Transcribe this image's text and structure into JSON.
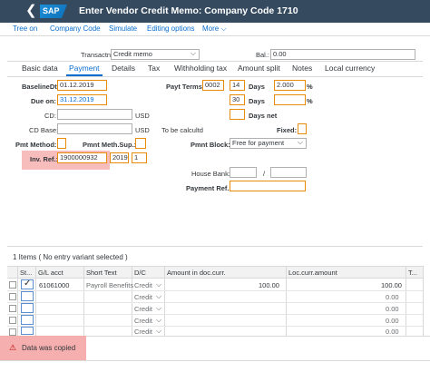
{
  "shell": {
    "back": "❮",
    "logo": "SAP",
    "title": "Enter Vendor Credit Memo: Company Code 1710"
  },
  "toolbar": {
    "tree_on": "Tree on",
    "company_code": "Company Code",
    "simulate": "Simulate",
    "editing_options": "Editing options",
    "more": "More"
  },
  "header": {
    "transaction_label": "Transactn:",
    "transaction_value": "Credit memo",
    "balance_label": "Bal.:",
    "balance_value": "0.00"
  },
  "tabs": [
    "Basic data",
    "Payment",
    "Details",
    "Tax",
    "Withholding tax",
    "Amount split",
    "Notes",
    "Local currency"
  ],
  "payment": {
    "baseline_label": "BaselineDt:",
    "baseline_value": "01.12.2019",
    "due_label": "Due on:",
    "due_value": "31.12.2019",
    "cd_label": "CD:",
    "cd_currency": "USD",
    "cd_base_label": "CD Base:",
    "cd_base_currency": "USD",
    "pmt_method_label": "Pmt Method:",
    "pmt_meth_sup_label": "Pmnt Meth.Sup.:",
    "inv_ref_label": "Inv. Ref.:",
    "inv_ref_value": "1900000932",
    "inv_ref_year": "2019",
    "inv_ref_item": "1",
    "payt_terms_label": "Payt Terms:",
    "payt_terms_value": "0002",
    "days1": "14",
    "days_label1": "Days",
    "pct1": "2.000",
    "pct_sign1": "%",
    "days2": "30",
    "days_label2": "Days",
    "pct_sign2": "%",
    "days_net_label": "Days net",
    "to_be_calc_label": "To be calcultd",
    "fixed_label": "Fixed:",
    "pmnt_block_label": "Pmnt Block:",
    "pmnt_block_value": "Free for payment",
    "house_bank_label": "House Bank:",
    "slash": "/",
    "payment_ref_label": "Payment Ref.:"
  },
  "items": {
    "title": "1 Items ( No entry variant selected )",
    "columns": [
      "St...",
      "G/L acct",
      "Short Text",
      "D/C",
      "Amount in doc.curr.",
      "Loc.curr.amount",
      "T..."
    ],
    "rows": [
      {
        "gl": "61061000",
        "short_text": "Payroll Benefits",
        "dc": "Credit",
        "amount": "100.00",
        "loc_amount": "100.00"
      },
      {
        "gl": "",
        "short_text": "",
        "dc": "Credit",
        "amount": "",
        "loc_amount": "0.00"
      },
      {
        "gl": "",
        "short_text": "",
        "dc": "Credit",
        "amount": "",
        "loc_amount": "0.00"
      },
      {
        "gl": "",
        "short_text": "",
        "dc": "Credit",
        "amount": "",
        "loc_amount": "0.00"
      },
      {
        "gl": "",
        "short_text": "",
        "dc": "Credit",
        "amount": "",
        "loc_amount": "0.00"
      }
    ]
  },
  "message": {
    "icon": "⚠",
    "text": "Data was copied"
  }
}
